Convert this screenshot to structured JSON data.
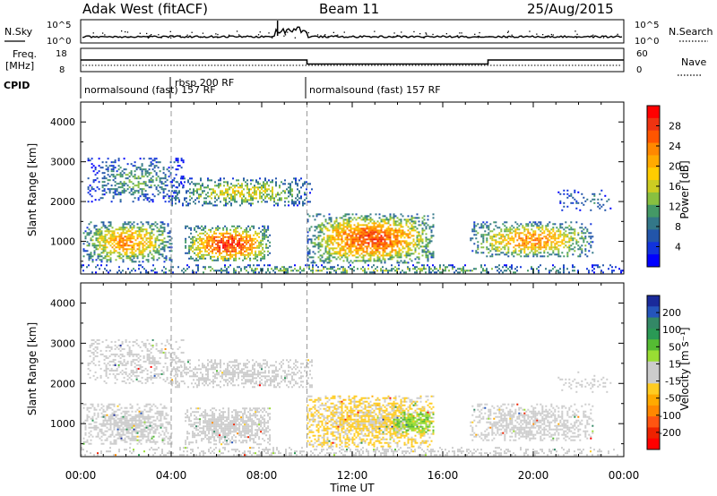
{
  "header": {
    "station": "Adak West (fitACF)",
    "beam": "Beam 11",
    "date": "25/Aug/2015"
  },
  "status_panels": {
    "nsky_label": "N.Sky",
    "nsearch_label": "N.Search",
    "nsky_ticks": [
      "10^5",
      "10^0"
    ],
    "nsearch_ticks": [
      "10^5",
      "10^0"
    ],
    "freq_label_top": "Freq.",
    "freq_label_bottom": "[MHz]",
    "freq_ticks": [
      "18",
      "8"
    ],
    "nave_label": "Nave",
    "nave_ticks": [
      "60",
      "0"
    ],
    "cpid_label": "CPID",
    "cpid_segments": [
      {
        "t_start": 0,
        "t_end": 10,
        "label": "normalsound (fast) 157 RF"
      },
      {
        "t_start": 4,
        "t_end": 10,
        "label": "rbsp 200 RF"
      },
      {
        "t_start": 10,
        "t_end": 24,
        "label": "normalsound (fast) 157 RF"
      }
    ],
    "freq_mhz": [
      {
        "t_start": 0,
        "t_end": 10,
        "value": 13
      },
      {
        "t_start": 10,
        "t_end": 18,
        "value": 10.5
      },
      {
        "t_start": 18,
        "t_end": 24,
        "value": 13
      }
    ],
    "nave_level": 25
  },
  "colorbars": {
    "power": {
      "label": "Power [dB]",
      "ticks": [
        "28",
        "24",
        "20",
        "16",
        "12",
        "8",
        "4"
      ],
      "colors": [
        "#ff0000",
        "#ee3311",
        "#ff5500",
        "#ff8800",
        "#ffaa00",
        "#ffcc00",
        "#cccc22",
        "#88c040",
        "#449966",
        "#337788",
        "#2255aa",
        "#1133dd",
        "#0000ff"
      ]
    },
    "velocity": {
      "label": "Velocity [m s⁻¹]",
      "ticks": [
        "200",
        "100",
        "50",
        "15",
        "-15",
        "-50",
        "-100",
        "-200"
      ],
      "colors": [
        "#1a2a9a",
        "#2555bb",
        "#338866",
        "#2a9955",
        "#55bb33",
        "#99dd33",
        "#cccccc",
        "#cccccc",
        "#ffcc22",
        "#ffaa00",
        "#ff8800",
        "#ff5511",
        "#ee2200",
        "#ff0000"
      ]
    }
  },
  "axes": {
    "ylabel": "Slant Range [km]",
    "xlabel": "Time UT",
    "x_ticks": [
      "00:00",
      "04:00",
      "08:00",
      "12:00",
      "16:00",
      "20:00",
      "00:00"
    ],
    "y_ticks": [
      "1000",
      "2000",
      "3000",
      "4000"
    ],
    "x_range_hours": [
      0,
      24
    ],
    "y_range_km": [
      180,
      4500
    ],
    "dashed_lines_hours": [
      4,
      10
    ]
  },
  "chart_data": [
    {
      "type": "heatmap",
      "title": "",
      "variable": "Power [dB]",
      "xlabel": "",
      "ylabel": "Slant Range [km]",
      "xlim": [
        0,
        24
      ],
      "ylim": [
        180,
        4500
      ],
      "scatter_regions": [
        {
          "t_start": 0.1,
          "t_end": 4.0,
          "r_low": 500,
          "r_high": 1500,
          "peak": 22,
          "density": 0.8
        },
        {
          "t_start": 4.6,
          "t_end": 8.4,
          "r_low": 500,
          "r_high": 1400,
          "peak": 28,
          "density": 0.85
        },
        {
          "t_start": 0.3,
          "t_end": 4.5,
          "r_low": 2000,
          "r_high": 3100,
          "peak": 10,
          "density": 0.5
        },
        {
          "t_start": 4.0,
          "t_end": 10.2,
          "r_low": 1900,
          "r_high": 2600,
          "peak": 16,
          "density": 0.6
        },
        {
          "t_start": 10.0,
          "t_end": 15.6,
          "r_low": 450,
          "r_high": 1700,
          "peak": 26,
          "density": 0.85
        },
        {
          "t_start": 17.2,
          "t_end": 22.6,
          "r_low": 600,
          "r_high": 1500,
          "peak": 22,
          "density": 0.7
        },
        {
          "t_start": 0.0,
          "t_end": 24.0,
          "r_low": 200,
          "r_high": 420,
          "peak": 12,
          "density": 0.45
        },
        {
          "t_start": 21.0,
          "t_end": 23.5,
          "r_low": 1800,
          "r_high": 2300,
          "peak": 8,
          "density": 0.25
        }
      ]
    },
    {
      "type": "heatmap",
      "title": "",
      "variable": "Velocity [m s⁻¹]",
      "xlabel": "Time UT",
      "ylabel": "Slant Range [km]",
      "xlim": [
        0,
        24
      ],
      "ylim": [
        180,
        4500
      ],
      "scatter_regions": [
        {
          "t_start": 0.1,
          "t_end": 4.0,
          "r_low": 500,
          "r_high": 1500,
          "value": 0,
          "density": 0.8
        },
        {
          "t_start": 4.6,
          "t_end": 8.4,
          "r_low": 500,
          "r_high": 1400,
          "value": 0,
          "density": 0.85
        },
        {
          "t_start": 0.3,
          "t_end": 4.5,
          "r_low": 2000,
          "r_high": 3100,
          "value": 0,
          "density": 0.5
        },
        {
          "t_start": 4.0,
          "t_end": 10.2,
          "r_low": 1900,
          "r_high": 2600,
          "value": 0,
          "density": 0.6
        },
        {
          "t_start": 10.0,
          "t_end": 15.6,
          "r_low": 450,
          "r_high": 1700,
          "value": -40,
          "density": 0.85
        },
        {
          "t_start": 13.8,
          "t_end": 15.6,
          "r_low": 800,
          "r_high": 1300,
          "value": 60,
          "density": 0.8
        },
        {
          "t_start": 17.2,
          "t_end": 22.6,
          "r_low": 600,
          "r_high": 1500,
          "value": 0,
          "density": 0.7
        },
        {
          "t_start": 0.0,
          "t_end": 24.0,
          "r_low": 200,
          "r_high": 420,
          "value": 10,
          "density": 0.45
        },
        {
          "t_start": 21.0,
          "t_end": 23.5,
          "r_low": 1800,
          "r_high": 2300,
          "value": 0,
          "density": 0.25
        }
      ]
    }
  ]
}
